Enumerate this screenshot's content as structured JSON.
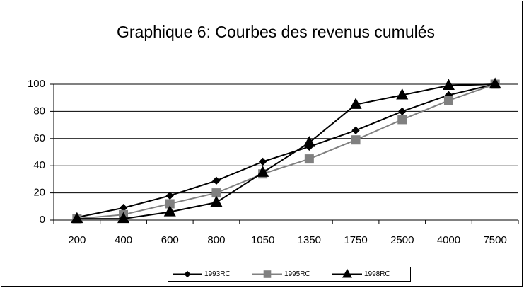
{
  "chart_data": {
    "type": "line",
    "title": "Graphique 6: Courbes des revenus cumulés",
    "categories": [
      "200",
      "400",
      "600",
      "800",
      "1050",
      "1350",
      "1750",
      "2500",
      "4000",
      "7500"
    ],
    "series": [
      {
        "name": "1993RC",
        "color": "#000000",
        "marker": "diamond",
        "values": [
          2,
          9,
          18,
          29,
          43,
          54,
          66,
          80,
          92,
          100
        ]
      },
      {
        "name": "1995RC",
        "color": "#808080",
        "marker": "square",
        "values": [
          1,
          4,
          12,
          20,
          34,
          45,
          59,
          74,
          88,
          100
        ]
      },
      {
        "name": "1998RC",
        "color": "#000000",
        "marker": "triangle",
        "values": [
          1,
          1,
          6,
          13,
          35,
          57,
          85,
          92,
          99,
          100
        ]
      }
    ],
    "ylim": [
      0,
      100
    ],
    "yticks": [
      0,
      20,
      40,
      60,
      80,
      100
    ],
    "grid": true,
    "legend": "bottom"
  }
}
